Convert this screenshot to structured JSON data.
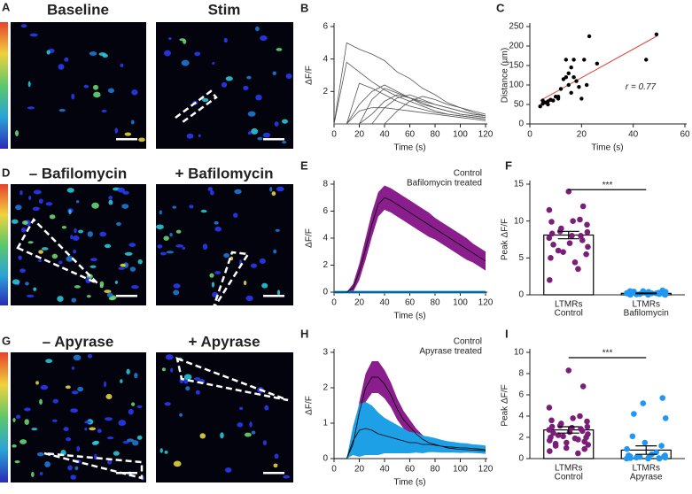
{
  "image_panels": [
    {
      "label": "A",
      "titles": [
        "Baseline",
        "Stim"
      ]
    },
    {
      "label": "D",
      "titles": [
        "– Bafilomycin",
        "+ Bafilomycin"
      ]
    },
    {
      "label": "G",
      "titles": [
        "– Apyrase",
        "+ Apyrase"
      ]
    }
  ],
  "chart_data": [
    {
      "type": "line",
      "panel_label": "B",
      "ylabel": "ΔF/F",
      "xlabel": "Time (s)",
      "color": "#555555",
      "x": [
        0,
        10,
        20,
        30,
        40,
        50,
        60,
        70,
        80,
        90,
        100,
        110,
        120
      ],
      "xlim": [
        0,
        120
      ],
      "xticks": [
        0,
        20,
        40,
        60,
        80,
        100,
        120
      ],
      "ylim": [
        0,
        6
      ],
      "yticks": [
        2,
        4,
        6
      ],
      "series": [
        {
          "values": [
            0,
            5,
            4.6,
            4.3,
            3.9,
            3.2,
            2.8,
            2.2,
            1.8,
            1.3,
            1.0,
            0.7,
            0.5
          ]
        },
        {
          "values": [
            0,
            3.8,
            3.2,
            2.6,
            2.1,
            1.7,
            1.4,
            1.1,
            0.8,
            0.6,
            0.5,
            0.4,
            0.3
          ]
        },
        {
          "values": [
            0,
            0,
            2.5,
            2.2,
            1.8,
            1.4,
            1.1,
            0.9,
            0.7,
            0.6,
            0.5,
            0.4,
            0.3
          ]
        },
        {
          "values": [
            0,
            0,
            1.2,
            2.0,
            2.4,
            2.0,
            1.6,
            1.2,
            1.0,
            0.8,
            0.6,
            0.5,
            0.4
          ]
        },
        {
          "values": [
            0,
            0,
            0,
            1.5,
            2.2,
            1.9,
            1.6,
            1.3,
            1.0,
            0.8,
            0.6,
            0.5,
            0.4
          ]
        },
        {
          "values": [
            0,
            0,
            0,
            0.6,
            1.4,
            1.8,
            1.6,
            1.4,
            1.2,
            1.0,
            0.8,
            0.6,
            0.5
          ]
        },
        {
          "values": [
            0,
            0,
            0,
            0,
            1.0,
            1.6,
            1.8,
            1.5,
            1.2,
            1.0,
            0.8,
            0.6,
            0.5
          ]
        },
        {
          "values": [
            0,
            0,
            0,
            0,
            0,
            0.8,
            1.4,
            1.7,
            1.5,
            1.2,
            1.0,
            0.8,
            0.6
          ]
        },
        {
          "values": [
            0,
            0,
            0.8,
            1.0,
            1.0,
            0.9,
            0.8,
            0.7,
            0.6,
            0.5,
            0.4,
            0.3,
            0.2
          ]
        }
      ]
    },
    {
      "type": "scatter",
      "panel_label": "C",
      "ylabel": "Distance (µm)",
      "xlabel": "Time (s)",
      "color": "#000000",
      "annotation": "r = 0.77",
      "x": [
        4,
        5,
        5,
        6,
        7,
        8,
        9,
        10,
        11,
        12,
        13,
        14,
        14,
        15,
        15,
        16,
        16,
        17,
        18,
        17,
        19,
        20,
        21,
        22,
        23,
        26,
        45,
        49,
        7,
        11
      ],
      "values": [
        45,
        52,
        60,
        55,
        58,
        62,
        60,
        70,
        65,
        90,
        115,
        120,
        165,
        100,
        130,
        145,
        80,
        120,
        110,
        165,
        95,
        65,
        165,
        100,
        225,
        155,
        165,
        230,
        50,
        70
      ],
      "fit": {
        "x": [
          4,
          49
        ],
        "y": [
          60,
          225
        ],
        "color": "#e8413c"
      },
      "xlim": [
        0,
        60
      ],
      "xticks": [
        0,
        20,
        40,
        60
      ],
      "ylim": [
        0,
        250
      ],
      "yticks": [
        0,
        50,
        100,
        150,
        200,
        250
      ]
    },
    {
      "type": "band",
      "panel_label": "E",
      "ylabel": "ΔF/F",
      "xlabel": "Time (s)",
      "line_color": "#000000",
      "x": [
        0,
        5,
        10,
        15,
        20,
        25,
        30,
        35,
        40,
        45,
        50,
        55,
        60,
        65,
        70,
        75,
        80,
        85,
        90,
        95,
        100,
        105,
        110,
        115,
        120
      ],
      "xlim": [
        0,
        120
      ],
      "xticks": [
        0,
        20,
        40,
        60,
        80,
        100,
        120
      ],
      "ylim": [
        0,
        8
      ],
      "yticks": [
        0,
        2,
        4,
        6,
        8
      ],
      "series": [
        {
          "name": "Control",
          "color": "#8a1e8c",
          "values": [
            0,
            0,
            0,
            0.3,
            1.5,
            3.2,
            5.0,
            6.5,
            7.0,
            6.8,
            6.5,
            6.2,
            5.9,
            5.6,
            5.3,
            5.0,
            4.7,
            4.4,
            4.1,
            3.8,
            3.5,
            3.2,
            2.9,
            2.6,
            2.3
          ],
          "errors": [
            0,
            0,
            0,
            0.3,
            0.6,
            0.8,
            0.9,
            0.9,
            0.9,
            0.9,
            0.9,
            0.9,
            0.9,
            0.9,
            0.9,
            0.9,
            0.8,
            0.8,
            0.8,
            0.8,
            0.8,
            0.8,
            0.7,
            0.7,
            0.7
          ]
        },
        {
          "name": "Bafilomycin treated",
          "color": "#1ea0e6",
          "values": [
            0,
            0,
            0,
            0,
            0,
            0,
            0,
            0,
            0,
            0,
            0,
            0,
            0,
            0,
            0,
            0,
            0,
            0,
            0,
            0,
            0,
            0,
            0,
            0,
            0
          ],
          "errors": [
            0.1,
            0.1,
            0.1,
            0.1,
            0.1,
            0.1,
            0.1,
            0.1,
            0.1,
            0.1,
            0.1,
            0.1,
            0.1,
            0.1,
            0.1,
            0.1,
            0.1,
            0.1,
            0.1,
            0.1,
            0.1,
            0.1,
            0.1,
            0.1,
            0.1
          ]
        }
      ]
    },
    {
      "type": "bar",
      "panel_label": "F",
      "ylabel": "Peak ΔF/F",
      "significance": "***",
      "categories": [
        [
          "LTMRs",
          "Control"
        ],
        [
          "LTMRs",
          "Bafilomycin"
        ]
      ],
      "values": [
        8.1,
        0.2
      ],
      "errors": [
        0.5,
        0.05
      ],
      "colors": [
        "#7b1e7a",
        "#2196f3"
      ],
      "points": [
        [
          14,
          12,
          11.5,
          10.2,
          10,
          9.9,
          9.5,
          9,
          8.6,
          8.5,
          8.3,
          8,
          8,
          7.7,
          7.4,
          7,
          6.8,
          6.5,
          6,
          5.8,
          5.5,
          5,
          4.4,
          3.5,
          2
        ],
        [
          0.6,
          0.5,
          0.45,
          0.4,
          0.35,
          0.3,
          0.3,
          0.25,
          0.2,
          0.2,
          0.15,
          0.1,
          0.1,
          0.05,
          0,
          0,
          0,
          0.1,
          0.2,
          0.3,
          0.4,
          0.5
        ]
      ],
      "ylim": [
        0,
        15
      ],
      "yticks": [
        0,
        5,
        10,
        15
      ]
    },
    {
      "type": "band",
      "panel_label": "H",
      "ylabel": "ΔF/F",
      "xlabel": "Time (s)",
      "line_color": "#000000",
      "x": [
        0,
        5,
        10,
        15,
        20,
        25,
        30,
        35,
        40,
        45,
        50,
        55,
        60,
        65,
        70,
        75,
        80,
        85,
        90,
        95,
        100,
        105,
        110,
        115,
        120
      ],
      "xlim": [
        0,
        120
      ],
      "xticks": [
        0,
        20,
        40,
        60,
        80,
        100,
        120
      ],
      "ylim": [
        0,
        3
      ],
      "yticks": [
        0,
        1,
        2,
        3
      ],
      "series": [
        {
          "name": "Control",
          "color": "#8a1e8c",
          "values": [
            0,
            0,
            0,
            0.4,
            1.3,
            2.0,
            2.3,
            2.3,
            2.1,
            1.8,
            1.4,
            1.1,
            0.9,
            0.7,
            0.55,
            0.45,
            0.4,
            0.35,
            0.3,
            0.28,
            0.26,
            0.25,
            0.24,
            0.23,
            0.22
          ],
          "errors": [
            0,
            0,
            0,
            0.15,
            0.3,
            0.4,
            0.45,
            0.45,
            0.4,
            0.35,
            0.3,
            0.25,
            0.2,
            0.15,
            0.12,
            0.1,
            0.08,
            0.07,
            0.06,
            0.06,
            0.05,
            0.05,
            0.05,
            0.05,
            0.05
          ]
        },
        {
          "name": "Apyrase treated",
          "color": "#1ea0e6",
          "values": [
            0,
            0,
            0,
            0.5,
            0.8,
            0.85,
            0.8,
            0.7,
            0.65,
            0.6,
            0.55,
            0.5,
            0.45,
            0.45,
            0.4,
            0.4,
            0.38,
            0.35,
            0.33,
            0.32,
            0.3,
            0.3,
            0.28,
            0.27,
            0.25
          ],
          "errors": [
            0,
            0,
            0,
            0.4,
            0.75,
            0.75,
            0.7,
            0.6,
            0.5,
            0.45,
            0.4,
            0.35,
            0.3,
            0.28,
            0.25,
            0.22,
            0.2,
            0.18,
            0.16,
            0.15,
            0.14,
            0.13,
            0.12,
            0.12,
            0.12
          ]
        }
      ]
    },
    {
      "type": "bar",
      "panel_label": "I",
      "ylabel": "Peak ΔF/F",
      "significance": "***",
      "categories": [
        [
          "LTMRs",
          "Control"
        ],
        [
          "LTMRs",
          "Apyrase"
        ]
      ],
      "values": [
        2.7,
        0.8
      ],
      "errors": [
        0.3,
        0.4
      ],
      "colors": [
        "#7b1e7a",
        "#2196f3"
      ],
      "points": [
        [
          8.3,
          6.8,
          4.8,
          4,
          3.8,
          3.6,
          3.5,
          3.3,
          3.1,
          3,
          3,
          2.9,
          2.8,
          2.7,
          2.6,
          2.5,
          2.4,
          2.3,
          2.2,
          2.1,
          2,
          2,
          1.9,
          1.8,
          1.7,
          1.6,
          1.5,
          1.4,
          1.3,
          1.2,
          1,
          0.9,
          0.7,
          0.5
        ],
        [
          5.7,
          5.2,
          4.2,
          3.8,
          2.1,
          1.5,
          1.2,
          0.9,
          0.6,
          0.4,
          0.3,
          0.2,
          0.15,
          0.1,
          0.1,
          0.05,
          0,
          0,
          0,
          0.05,
          0.1,
          0.2,
          0.3
        ]
      ],
      "ylim": [
        0,
        10
      ],
      "yticks": [
        0,
        2,
        4,
        6,
        8,
        10
      ]
    }
  ]
}
